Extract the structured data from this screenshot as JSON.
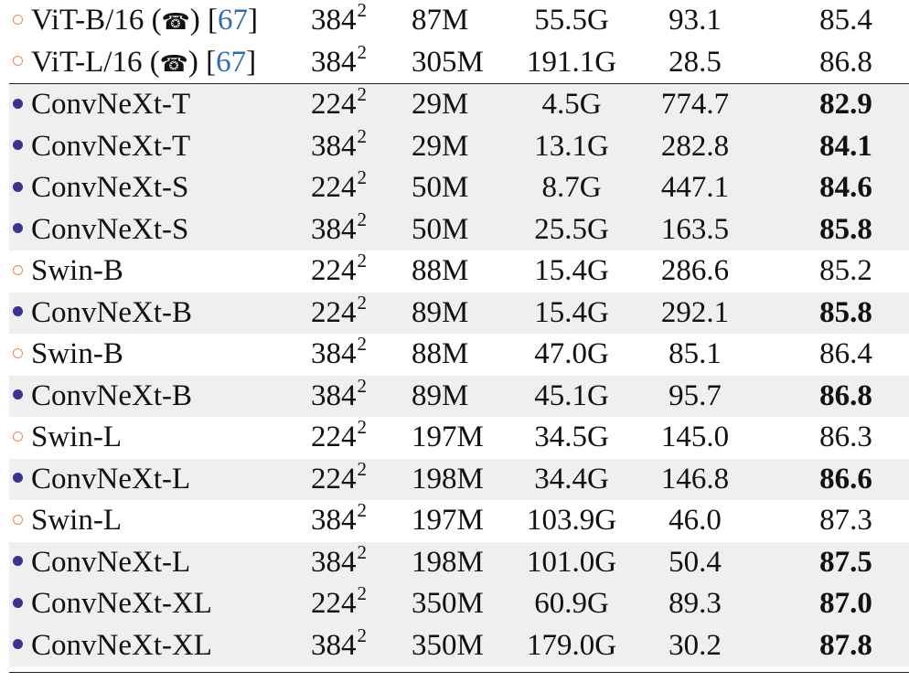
{
  "rows": [
    {
      "marker": "open",
      "name": "ViT-B/16 (",
      "icon": "phone-icon",
      "name_suffix": ")",
      "cite_open": " [",
      "cite": "67",
      "cite_close": "]",
      "res": "384",
      "res_exp": "2",
      "params": "87M",
      "flops": "55.5G",
      "throughput": "93.1",
      "acc": "85.4",
      "acc_bold": false,
      "shaded": false
    },
    {
      "marker": "open",
      "name": "ViT-L/16 (",
      "icon": "phone-icon",
      "name_suffix": ")",
      "cite_open": " [",
      "cite": "67",
      "cite_close": "]",
      "res": "384",
      "res_exp": "2",
      "params": "305M",
      "flops": "191.1G",
      "throughput": "28.5",
      "acc": "86.8",
      "acc_bold": false,
      "shaded": false
    },
    {
      "marker": "filled",
      "name": "ConvNeXt-T",
      "res": "224",
      "res_exp": "2",
      "params": "29M",
      "flops": "4.5G",
      "throughput": "774.7",
      "acc": "82.9",
      "acc_bold": true,
      "shaded": true
    },
    {
      "marker": "filled",
      "name": "ConvNeXt-T",
      "res": "384",
      "res_exp": "2",
      "params": "29M",
      "flops": "13.1G",
      "throughput": "282.8",
      "acc": "84.1",
      "acc_bold": true,
      "shaded": true
    },
    {
      "marker": "filled",
      "name": "ConvNeXt-S",
      "res": "224",
      "res_exp": "2",
      "params": "50M",
      "flops": "8.7G",
      "throughput": "447.1",
      "acc": "84.6",
      "acc_bold": true,
      "shaded": true
    },
    {
      "marker": "filled",
      "name": "ConvNeXt-S",
      "res": "384",
      "res_exp": "2",
      "params": "50M",
      "flops": "25.5G",
      "throughput": "163.5",
      "acc": "85.8",
      "acc_bold": true,
      "shaded": true
    },
    {
      "marker": "open",
      "name": "Swin-B",
      "res": "224",
      "res_exp": "2",
      "params": "88M",
      "flops": "15.4G",
      "throughput": "286.6",
      "acc": "85.2",
      "acc_bold": false,
      "shaded": false
    },
    {
      "marker": "filled",
      "name": "ConvNeXt-B",
      "res": "224",
      "res_exp": "2",
      "params": "89M",
      "flops": "15.4G",
      "throughput": "292.1",
      "acc": "85.8",
      "acc_bold": true,
      "shaded": true
    },
    {
      "marker": "open",
      "name": "Swin-B",
      "res": "384",
      "res_exp": "2",
      "params": "88M",
      "flops": "47.0G",
      "throughput": "85.1",
      "acc": "86.4",
      "acc_bold": false,
      "shaded": false
    },
    {
      "marker": "filled",
      "name": "ConvNeXt-B",
      "res": "384",
      "res_exp": "2",
      "params": "89M",
      "flops": "45.1G",
      "throughput": "95.7",
      "acc": "86.8",
      "acc_bold": true,
      "shaded": true
    },
    {
      "marker": "open",
      "name": "Swin-L",
      "res": "224",
      "res_exp": "2",
      "params": "197M",
      "flops": "34.5G",
      "throughput": "145.0",
      "acc": "86.3",
      "acc_bold": false,
      "shaded": false
    },
    {
      "marker": "filled",
      "name": "ConvNeXt-L",
      "res": "224",
      "res_exp": "2",
      "params": "198M",
      "flops": "34.4G",
      "throughput": "146.8",
      "acc": "86.6",
      "acc_bold": true,
      "shaded": true
    },
    {
      "marker": "open",
      "name": "Swin-L",
      "res": "384",
      "res_exp": "2",
      "params": "197M",
      "flops": "103.9G",
      "throughput": "46.0",
      "acc": "87.3",
      "acc_bold": false,
      "shaded": false
    },
    {
      "marker": "filled",
      "name": "ConvNeXt-L",
      "res": "384",
      "res_exp": "2",
      "params": "198M",
      "flops": "101.0G",
      "throughput": "50.4",
      "acc": "87.5",
      "acc_bold": true,
      "shaded": true
    },
    {
      "marker": "filled",
      "name": "ConvNeXt-XL",
      "res": "224",
      "res_exp": "2",
      "params": "350M",
      "flops": "60.9G",
      "throughput": "89.3",
      "acc": "87.0",
      "acc_bold": true,
      "shaded": true
    },
    {
      "marker": "filled",
      "name": "ConvNeXt-XL",
      "res": "384",
      "res_exp": "2",
      "params": "350M",
      "flops": "179.0G",
      "throughput": "30.2",
      "acc": "87.8",
      "acc_bold": true,
      "shaded": true
    }
  ],
  "colors": {
    "open_marker": "#e58a5a",
    "filled_marker": "#3a3392",
    "citation": "#2f6db3",
    "row_shade": "#efefef"
  }
}
